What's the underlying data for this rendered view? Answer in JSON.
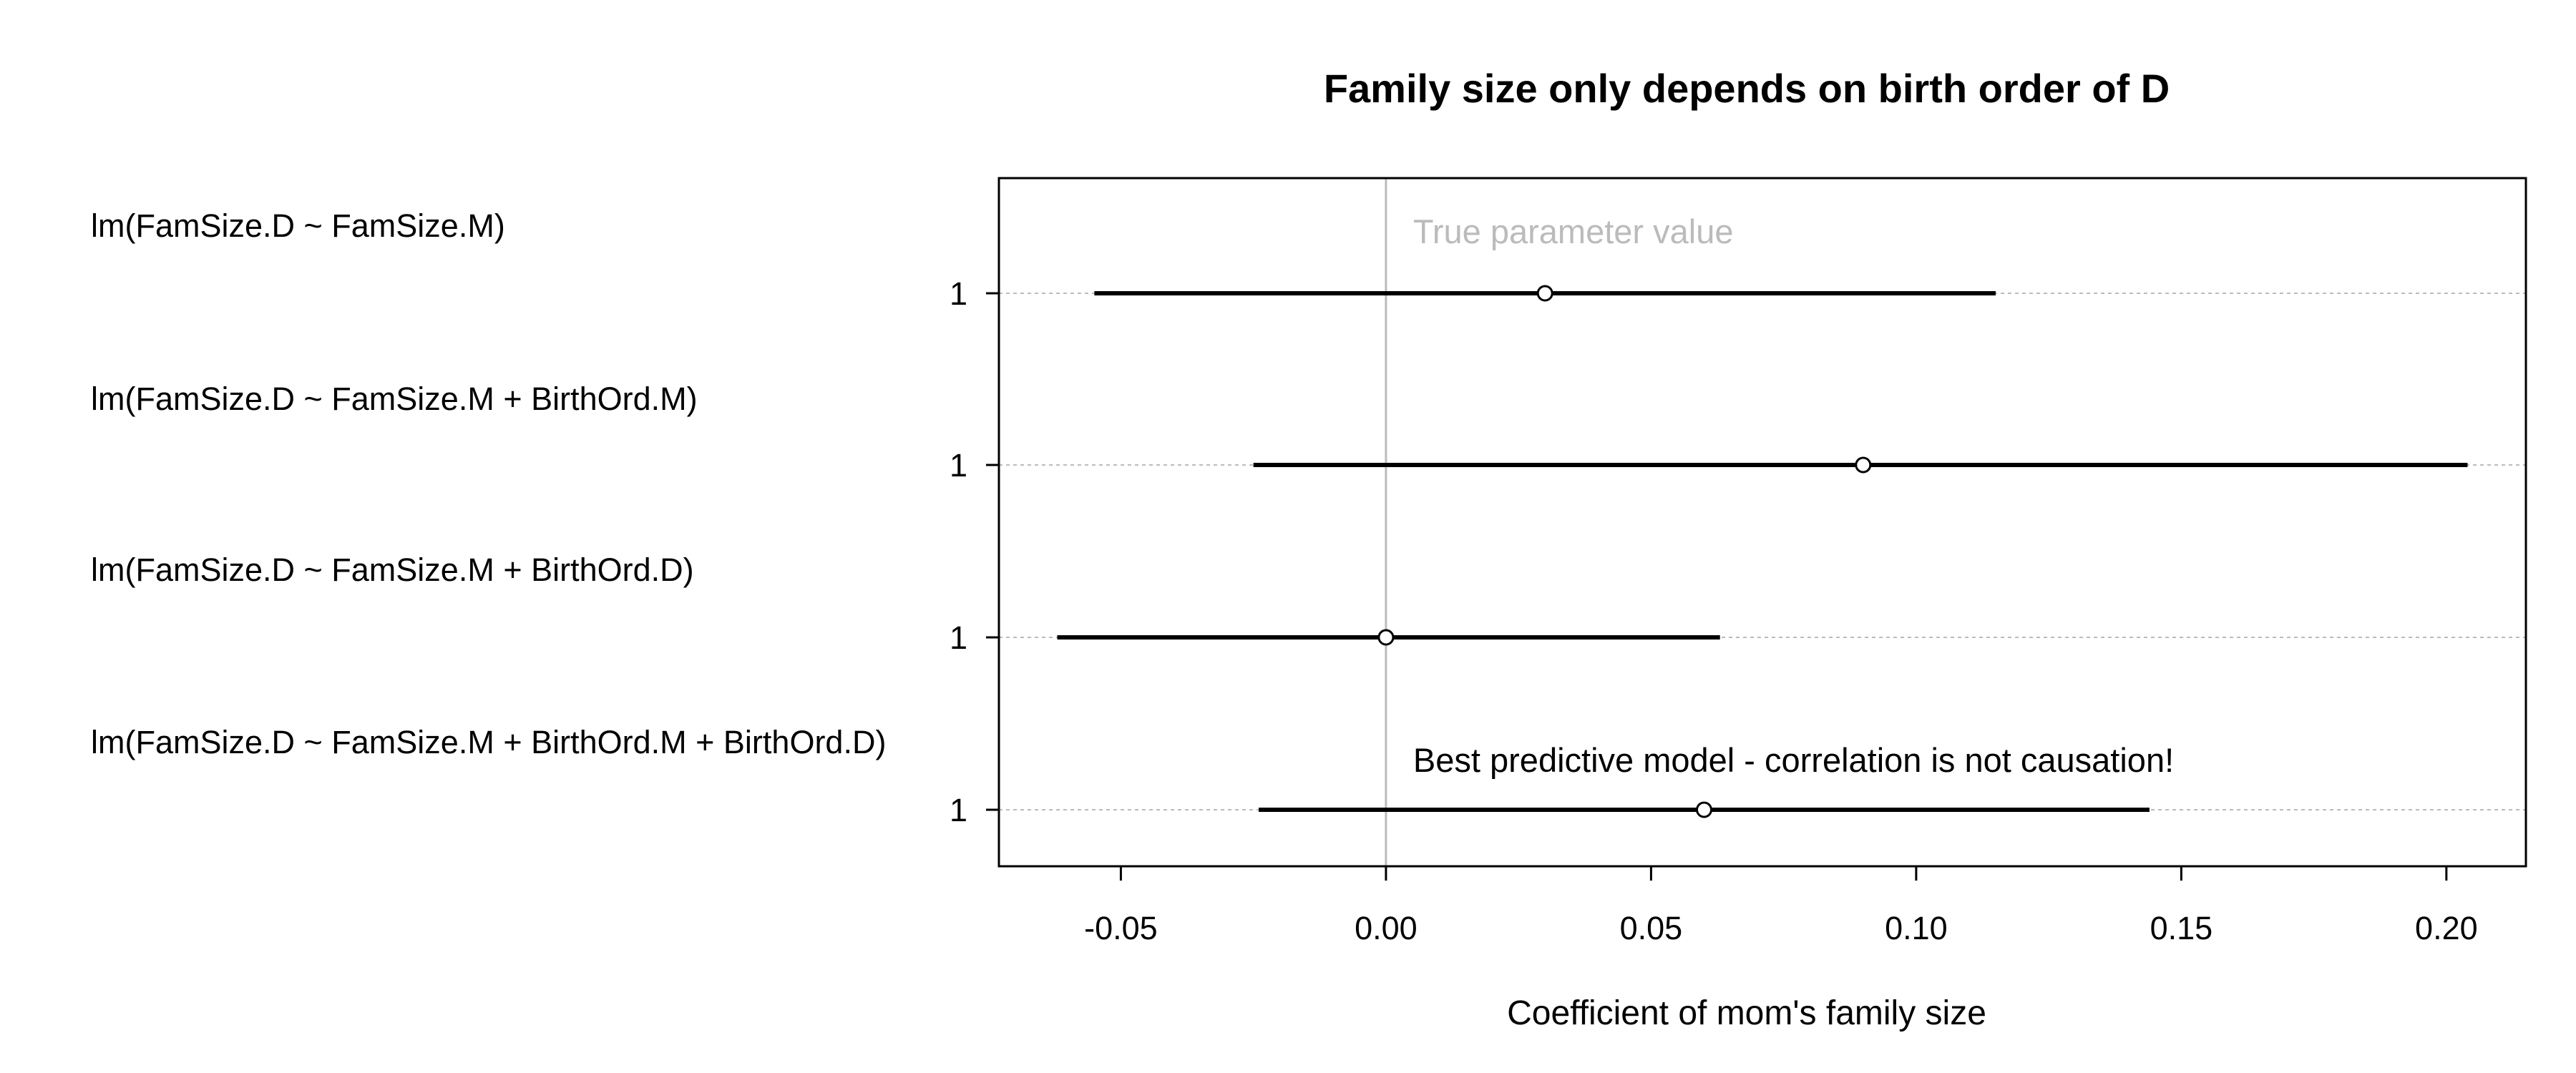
{
  "chart_data": {
    "type": "forest",
    "title": "Family size only depends on birth order of D",
    "xlabel": "Coefficient of mom's family size",
    "ylabel": "",
    "xlim": [
      -0.073,
      0.215
    ],
    "xticks": [
      -0.05,
      0.0,
      0.05,
      0.1,
      0.15,
      0.2
    ],
    "xtick_labels": [
      "-0.05",
      "0.00",
      "0.05",
      "0.10",
      "0.15",
      "0.20"
    ],
    "grid": "horizontal dotted at each row",
    "reference_line": {
      "x": 0.0,
      "label": "True parameter value",
      "color": "#bbbbbb"
    },
    "rows": [
      {
        "model": "lm(FamSize.D ~ FamSize.M)",
        "tick": "1",
        "estimate": 0.03,
        "lower": -0.055,
        "upper": 0.115
      },
      {
        "model": "lm(FamSize.D ~ FamSize.M + BirthOrd.M)",
        "tick": "1",
        "estimate": 0.09,
        "lower": -0.025,
        "upper": 0.204
      },
      {
        "model": "lm(FamSize.D ~ FamSize.M + BirthOrd.D)",
        "tick": "1",
        "estimate": 0.0,
        "lower": -0.062,
        "upper": 0.063
      },
      {
        "model": "lm(FamSize.D ~ FamSize.M + BirthOrd.M + BirthOrd.D)",
        "tick": "1",
        "estimate": 0.06,
        "lower": -0.024,
        "upper": 0.144
      }
    ],
    "annotations": [
      {
        "text": "Best predictive model - correlation is not causation!",
        "row": 3
      }
    ]
  }
}
